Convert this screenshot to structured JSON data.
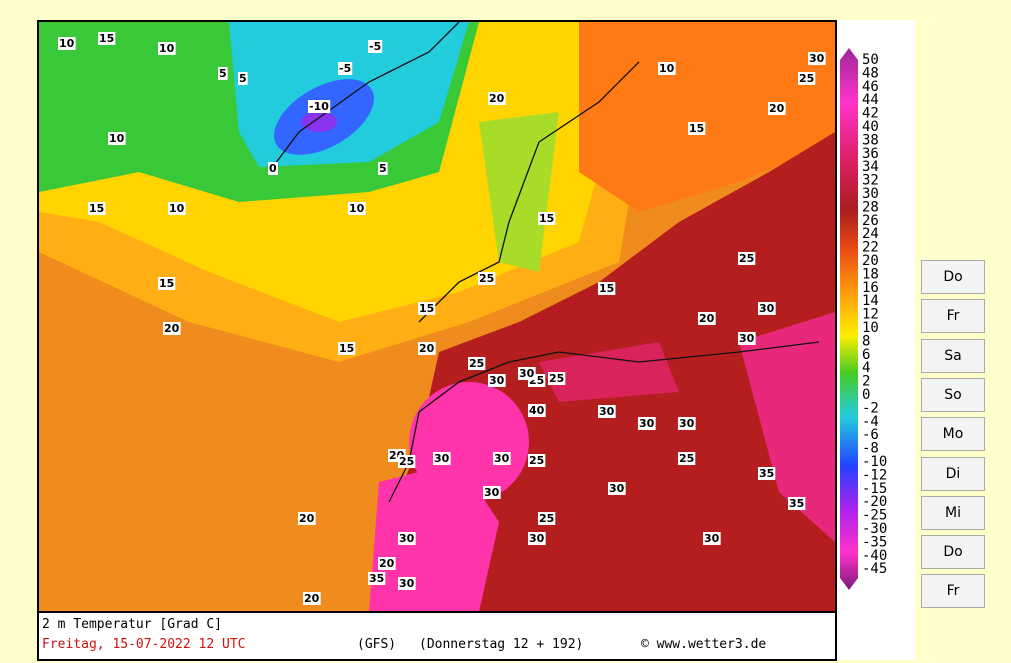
{
  "legend": {
    "labels": [
      "50",
      "48",
      "46",
      "44",
      "42",
      "40",
      "38",
      "36",
      "34",
      "32",
      "30",
      "28",
      "26",
      "24",
      "22",
      "20",
      "18",
      "16",
      "14",
      "12",
      "10",
      "8",
      "6",
      "4",
      "2",
      "0",
      "-2",
      "-4",
      "-6",
      "-8",
      "-10",
      "-12",
      "-15",
      "-20",
      "-25",
      "-30",
      "-35",
      "-40",
      "-45"
    ]
  },
  "footer": {
    "title": "2 m Temperatur [Grad C]",
    "date": "Freitag, 15-07-2022   12 UTC",
    "model": "(GFS)",
    "run": "(Donnerstag 12 + 192)",
    "credit": "© www.wetter3.de"
  },
  "days": [
    "Do",
    "Fr",
    "Sa",
    "So",
    "Mo",
    "Di",
    "Mi",
    "Do",
    "Fr"
  ],
  "map_labels": [
    "10",
    "15",
    "10",
    "5",
    "-5",
    "-10",
    "-5",
    "0",
    "5",
    "10",
    "15",
    "10",
    "5",
    "10",
    "15",
    "20",
    "15",
    "20",
    "15",
    "20",
    "25",
    "30",
    "25",
    "20",
    "15",
    "10",
    "15",
    "20",
    "15",
    "25",
    "30",
    "25",
    "20",
    "30",
    "25",
    "30",
    "40",
    "30",
    "25",
    "30",
    "30",
    "25",
    "30",
    "30",
    "20",
    "25",
    "30",
    "30",
    "25",
    "30",
    "35",
    "35",
    "30",
    "20",
    "20",
    "35",
    "30",
    "30",
    "25",
    "30"
  ]
}
